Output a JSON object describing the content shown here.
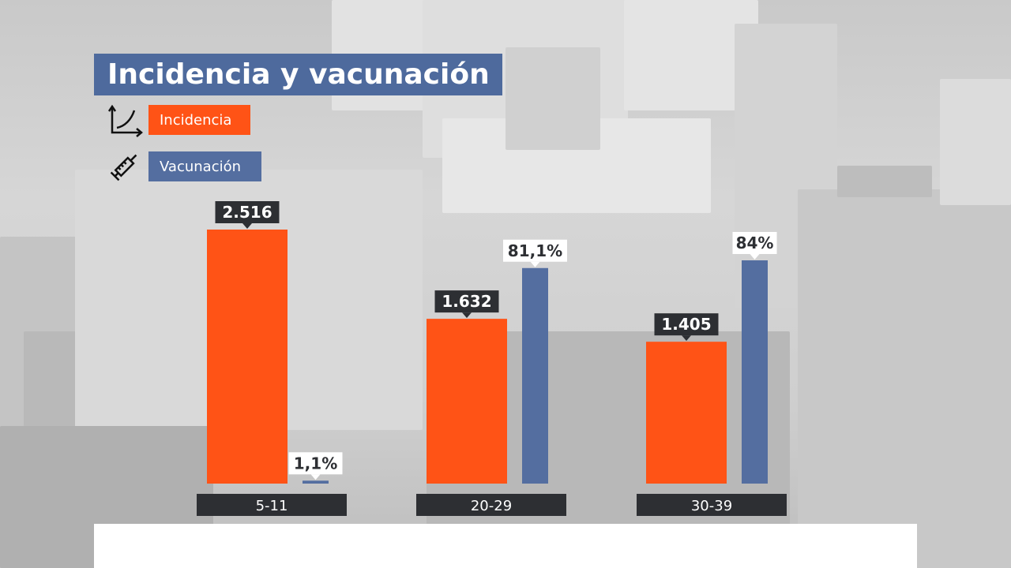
{
  "title": "Incidencia y vacunación",
  "legend": {
    "incidencia": {
      "label": "Incidencia",
      "color": "#ff5316",
      "icon": "curve-chart-icon"
    },
    "vacunacion": {
      "label": "Vacunación",
      "color": "#546ea0",
      "icon": "syringe-icon"
    }
  },
  "chart_data": {
    "type": "bar",
    "categories": [
      "5-11",
      "20-29",
      "30-39"
    ],
    "series": [
      {
        "name": "Incidencia",
        "color": "#ff5316",
        "values": [
          2516,
          1632,
          1405
        ],
        "labels": [
          "2.516",
          "1.632",
          "1.405"
        ]
      },
      {
        "name": "Vacunación",
        "color": "#546ea0",
        "values": [
          1.1,
          81.1,
          84
        ],
        "labels": [
          "1,1%",
          "81,1%",
          "84%"
        ]
      }
    ],
    "grid": false
  }
}
